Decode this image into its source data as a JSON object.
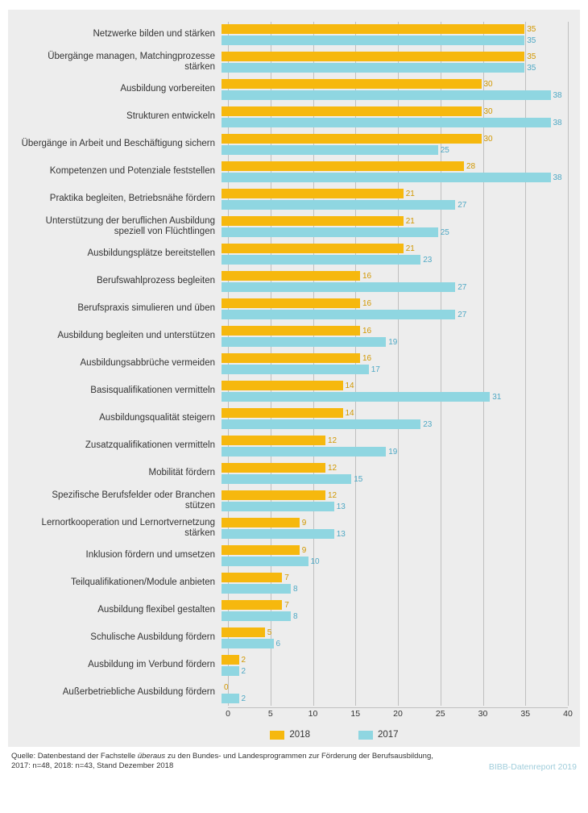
{
  "chart": {
    "type": "grouped-horizontal-bar",
    "background_color": "#ededed",
    "grid_color": "#bfbfbf",
    "label_fontsize": 11.5,
    "value_fontsize": 10,
    "xlim": [
      0,
      40
    ],
    "xtick_step": 5,
    "xticks": [
      0,
      5,
      10,
      15,
      20,
      25,
      30,
      35,
      40
    ],
    "series": [
      {
        "key": "y2018",
        "label": "2018",
        "color": "#f6b80e",
        "value_color": "#d19700"
      },
      {
        "key": "y2017",
        "label": "2017",
        "color": "#8fd6e1",
        "value_color": "#4fa8c4"
      }
    ],
    "categories": [
      {
        "label": "Netzwerke bilden und stärken",
        "y2018": 35,
        "y2017": 35
      },
      {
        "label": "Übergänge managen, Matchingprozesse stärken",
        "y2018": 35,
        "y2017": 35
      },
      {
        "label": "Ausbildung vorbereiten",
        "y2018": 30,
        "y2017": 38
      },
      {
        "label": "Strukturen entwickeln",
        "y2018": 30,
        "y2017": 38
      },
      {
        "label": "Übergänge in Arbeit und Beschäftigung sichern",
        "y2018": 30,
        "y2017": 25
      },
      {
        "label": "Kompetenzen und Potenziale feststellen",
        "y2018": 28,
        "y2017": 38
      },
      {
        "label": "Praktika begleiten, Betriebsnähe fördern",
        "y2018": 21,
        "y2017": 27
      },
      {
        "label": "Unterstützung der beruflichen Ausbildung speziell von Flüchtlingen",
        "y2018": 21,
        "y2017": 25
      },
      {
        "label": "Ausbildungsplätze bereitstellen",
        "y2018": 21,
        "y2017": 23
      },
      {
        "label": "Berufswahlprozess begleiten",
        "y2018": 16,
        "y2017": 27
      },
      {
        "label": "Berufspraxis simulieren und üben",
        "y2018": 16,
        "y2017": 27
      },
      {
        "label": "Ausbildung begleiten und unterstützen",
        "y2018": 16,
        "y2017": 19
      },
      {
        "label": "Ausbildungsabbrüche vermeiden",
        "y2018": 16,
        "y2017": 17
      },
      {
        "label": "Basisqualifikationen vermitteln",
        "y2018": 14,
        "y2017": 31
      },
      {
        "label": "Ausbildungsqualität steigern",
        "y2018": 14,
        "y2017": 23
      },
      {
        "label": "Zusatzqualifikationen vermitteln",
        "y2018": 12,
        "y2017": 19
      },
      {
        "label": "Mobilität fördern",
        "y2018": 12,
        "y2017": 15
      },
      {
        "label": "Spezifische Berufsfelder oder Branchen stützen",
        "y2018": 12,
        "y2017": 13
      },
      {
        "label": "Lernortkooperation und Lernortvernetzung stärken",
        "y2018": 9,
        "y2017": 13
      },
      {
        "label": "Inklusion fördern und umsetzen",
        "y2018": 9,
        "y2017": 10
      },
      {
        "label": "Teilqualifikationen/Module anbieten",
        "y2018": 7,
        "y2017": 8
      },
      {
        "label": "Ausbildung flexibel gestalten",
        "y2018": 7,
        "y2017": 8
      },
      {
        "label": "Schulische Ausbildung fördern",
        "y2018": 5,
        "y2017": 6
      },
      {
        "label": "Ausbildung im Verbund fördern",
        "y2018": 2,
        "y2017": 2
      },
      {
        "label": "Außerbetriebliche Ausbildung fördern",
        "y2018": 0,
        "y2017": 2
      }
    ]
  },
  "footer": {
    "source_line1": "Quelle: Datenbestand der Fachstelle ",
    "source_ital": "überaus",
    "source_line1b": " zu den Bundes- und Landesprogrammen zur Förderung der Berufsausbildung,",
    "source_line2": "2017: n=48, 2018: n=43, Stand Dezember 2018",
    "report": "BIBB-Datenreport 2019"
  }
}
